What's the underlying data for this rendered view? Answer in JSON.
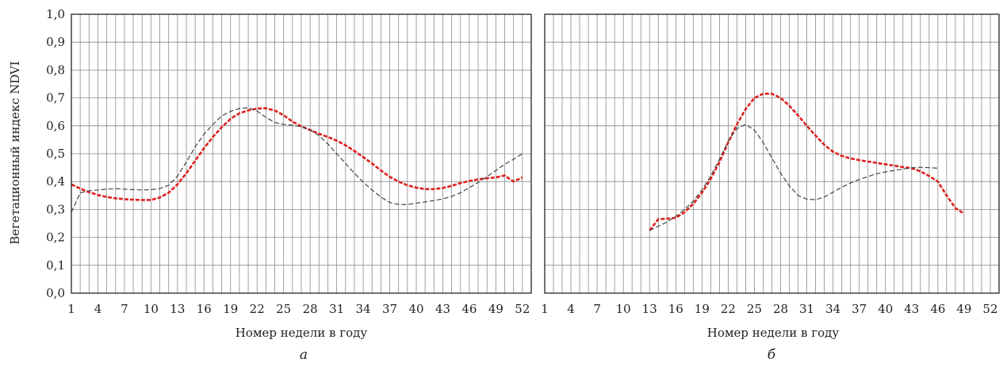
{
  "chart_data": [
    {
      "type": "line",
      "panel_label": "а",
      "xlabel": "Номер недели в году",
      "ylabel": "Вегетационный индекс NDVI",
      "xlim": [
        1,
        53
      ],
      "ylim": [
        0,
        1
      ],
      "x_ticks": [
        "1",
        "4",
        "7",
        "10",
        "13",
        "16",
        "19",
        "22",
        "25",
        "28",
        "31",
        "34",
        "37",
        "40",
        "43",
        "46",
        "49",
        "52"
      ],
      "y_ticks": [
        "0,0",
        "0,1",
        "0,2",
        "0,3",
        "0,4",
        "0,5",
        "0,6",
        "0,7",
        "0,8",
        "0,9",
        "1,0"
      ],
      "grid": true,
      "series": [
        {
          "color": "#e02020",
          "style": "dashed-thick",
          "x": [
            1,
            2,
            3,
            4,
            5,
            6,
            7,
            8,
            9,
            10,
            11,
            12,
            13,
            14,
            15,
            16,
            17,
            18,
            19,
            20,
            21,
            22,
            23,
            24,
            25,
            26,
            27,
            28,
            29,
            30,
            31,
            32,
            33,
            34,
            35,
            36,
            37,
            38,
            39,
            40,
            41,
            42,
            43,
            44,
            45,
            46,
            47,
            48,
            49,
            50,
            51,
            52
          ],
          "y": [
            0.39,
            0.375,
            0.362,
            0.352,
            0.345,
            0.34,
            0.337,
            0.335,
            0.334,
            0.334,
            0.343,
            0.36,
            0.39,
            0.43,
            0.475,
            0.52,
            0.56,
            0.595,
            0.625,
            0.645,
            0.655,
            0.662,
            0.663,
            0.655,
            0.638,
            0.615,
            0.598,
            0.585,
            0.572,
            0.56,
            0.547,
            0.53,
            0.51,
            0.488,
            0.465,
            0.44,
            0.417,
            0.4,
            0.387,
            0.378,
            0.373,
            0.373,
            0.377,
            0.385,
            0.395,
            0.402,
            0.408,
            0.412,
            0.415,
            0.422,
            0.4,
            0.415
          ]
        },
        {
          "color": "#444444",
          "style": "dashed-thin",
          "x": [
            1,
            2,
            3,
            4,
            5,
            6,
            7,
            8,
            9,
            10,
            11,
            12,
            13,
            14,
            15,
            16,
            17,
            18,
            19,
            20,
            21,
            22,
            23,
            24,
            25,
            26,
            27,
            28,
            29,
            30,
            31,
            32,
            33,
            34,
            35,
            36,
            37,
            38,
            39,
            40,
            41,
            42,
            43,
            44,
            45,
            46,
            47,
            48,
            49,
            50,
            51,
            52
          ],
          "y": [
            0.29,
            0.36,
            0.367,
            0.37,
            0.373,
            0.375,
            0.373,
            0.371,
            0.37,
            0.371,
            0.375,
            0.387,
            0.42,
            0.47,
            0.525,
            0.57,
            0.605,
            0.635,
            0.652,
            0.662,
            0.665,
            0.653,
            0.63,
            0.612,
            0.605,
            0.602,
            0.597,
            0.585,
            0.565,
            0.535,
            0.5,
            0.465,
            0.43,
            0.398,
            0.37,
            0.345,
            0.325,
            0.318,
            0.318,
            0.323,
            0.327,
            0.332,
            0.338,
            0.347,
            0.36,
            0.378,
            0.397,
            0.418,
            0.44,
            0.462,
            0.48,
            0.5
          ]
        }
      ]
    },
    {
      "type": "line",
      "panel_label": "б",
      "xlabel": "Номер недели в году",
      "ylabel": "",
      "xlim": [
        1,
        53
      ],
      "ylim": [
        0,
        1
      ],
      "x_ticks": [
        "1",
        "4",
        "7",
        "10",
        "13",
        "16",
        "19",
        "22",
        "25",
        "28",
        "31",
        "34",
        "37",
        "40",
        "43",
        "46",
        "49",
        "52"
      ],
      "y_ticks": [],
      "grid": true,
      "series": [
        {
          "color": "#e02020",
          "style": "dashed-thick",
          "x": [
            13,
            14,
            15,
            16,
            17,
            18,
            19,
            20,
            21,
            22,
            23,
            24,
            25,
            26,
            27,
            28,
            29,
            30,
            31,
            32,
            33,
            34,
            35,
            36,
            37,
            38,
            39,
            40,
            41,
            42,
            43,
            44,
            45,
            46,
            47,
            48,
            49
          ],
          "y": [
            0.225,
            0.265,
            0.267,
            0.27,
            0.29,
            0.32,
            0.36,
            0.41,
            0.47,
            0.54,
            0.605,
            0.66,
            0.7,
            0.715,
            0.715,
            0.7,
            0.672,
            0.637,
            0.6,
            0.565,
            0.532,
            0.507,
            0.492,
            0.483,
            0.477,
            0.472,
            0.467,
            0.462,
            0.457,
            0.452,
            0.448,
            0.437,
            0.42,
            0.4,
            0.35,
            0.305,
            0.285
          ]
        },
        {
          "color": "#444444",
          "style": "dashed-thin",
          "x": [
            13,
            14,
            15,
            16,
            17,
            18,
            19,
            20,
            21,
            22,
            23,
            24,
            25,
            26,
            27,
            28,
            29,
            30,
            31,
            32,
            33,
            34,
            35,
            36,
            37,
            38,
            39,
            40,
            41,
            42,
            43,
            44,
            45,
            46
          ],
          "y": [
            0.225,
            0.24,
            0.255,
            0.275,
            0.3,
            0.33,
            0.37,
            0.42,
            0.48,
            0.545,
            0.59,
            0.605,
            0.585,
            0.54,
            0.485,
            0.43,
            0.385,
            0.35,
            0.337,
            0.335,
            0.345,
            0.362,
            0.38,
            0.395,
            0.408,
            0.418,
            0.428,
            0.435,
            0.44,
            0.445,
            0.45,
            0.451,
            0.45,
            0.448
          ]
        }
      ]
    }
  ]
}
